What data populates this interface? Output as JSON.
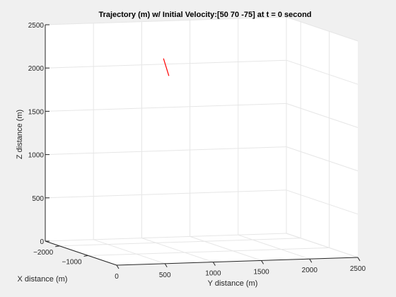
{
  "chart_data": {
    "type": "line",
    "title": "Trajectory (m) w/ Initial Velocity:[50  70 -75] at t = 0 second",
    "xlabel": "X distance (m)",
    "ylabel": "Y distance (m)",
    "zlabel": "Z distance (m)",
    "xlim": [
      -2500,
      0
    ],
    "ylim": [
      0,
      2500
    ],
    "zlim": [
      0,
      2500
    ],
    "x_ticks": [
      -2000,
      -1000
    ],
    "x_tick_labels": [
      "−2000",
      "−1000"
    ],
    "y_ticks": [
      0,
      500,
      1000,
      1500,
      2000,
      2500
    ],
    "y_tick_labels": [
      "0",
      "500",
      "1000",
      "1500",
      "2000",
      "2500"
    ],
    "z_ticks": [
      0,
      500,
      1000,
      1500,
      2000,
      2500
    ],
    "z_tick_labels": [
      "0",
      "500",
      "1000",
      "1500",
      "2000",
      "2500"
    ],
    "grid": true,
    "series": [
      {
        "color": "#ff0000",
        "x": [
          -1400,
          -1380
        ],
        "y": [
          900,
          950
        ],
        "z": [
          2200,
          2000
        ]
      }
    ]
  }
}
